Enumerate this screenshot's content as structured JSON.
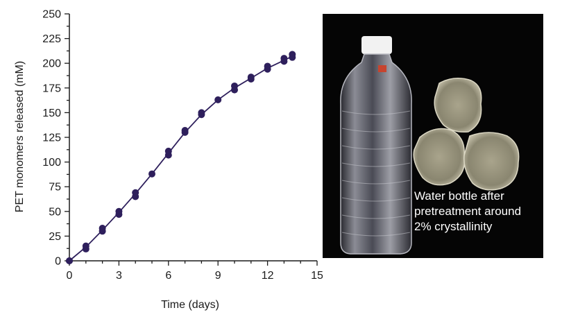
{
  "chart_data": {
    "type": "line",
    "xlabel": "Time (days)",
    "ylabel": "PET monomers released (mM)",
    "xlim": [
      0,
      15
    ],
    "ylim": [
      0,
      250
    ],
    "x_major_ticks": [
      0,
      3,
      6,
      9,
      12,
      15
    ],
    "y_major_ticks": [
      0,
      25,
      50,
      75,
      100,
      125,
      150,
      175,
      200,
      225,
      250
    ],
    "grid": false,
    "line_color": "#2e1f5c",
    "marker_color": "#2e1f5c",
    "series": [
      {
        "fit_line": {
          "x": [
            0,
            1,
            2,
            3,
            4,
            5,
            6,
            7,
            8,
            9,
            10,
            11,
            12,
            13,
            13.5
          ],
          "y": [
            0,
            14,
            31,
            49,
            68,
            88,
            109,
            130,
            148,
            163,
            175,
            185,
            195,
            203,
            207
          ]
        },
        "points": [
          {
            "x": 0,
            "y": 0
          },
          {
            "x": 0,
            "y": 0
          },
          {
            "x": 1,
            "y": 12
          },
          {
            "x": 1,
            "y": 15
          },
          {
            "x": 2,
            "y": 30
          },
          {
            "x": 2,
            "y": 33
          },
          {
            "x": 3,
            "y": 47
          },
          {
            "x": 3,
            "y": 50
          },
          {
            "x": 4,
            "y": 65
          },
          {
            "x": 4,
            "y": 69
          },
          {
            "x": 5,
            "y": 88
          },
          {
            "x": 6,
            "y": 107
          },
          {
            "x": 6,
            "y": 111
          },
          {
            "x": 7,
            "y": 130
          },
          {
            "x": 7,
            "y": 132
          },
          {
            "x": 8,
            "y": 148
          },
          {
            "x": 8,
            "y": 150
          },
          {
            "x": 9,
            "y": 163
          },
          {
            "x": 10,
            "y": 173
          },
          {
            "x": 10,
            "y": 177
          },
          {
            "x": 11,
            "y": 184
          },
          {
            "x": 11,
            "y": 186
          },
          {
            "x": 12,
            "y": 194
          },
          {
            "x": 12,
            "y": 197
          },
          {
            "x": 13,
            "y": 202
          },
          {
            "x": 13,
            "y": 205
          },
          {
            "x": 13.5,
            "y": 206
          },
          {
            "x": 13.5,
            "y": 209
          }
        ]
      }
    ]
  },
  "photo": {
    "background_color": "#050505",
    "caption_lines": [
      "Water bottle after",
      "pretreatment around",
      "2% crystallinity"
    ]
  }
}
